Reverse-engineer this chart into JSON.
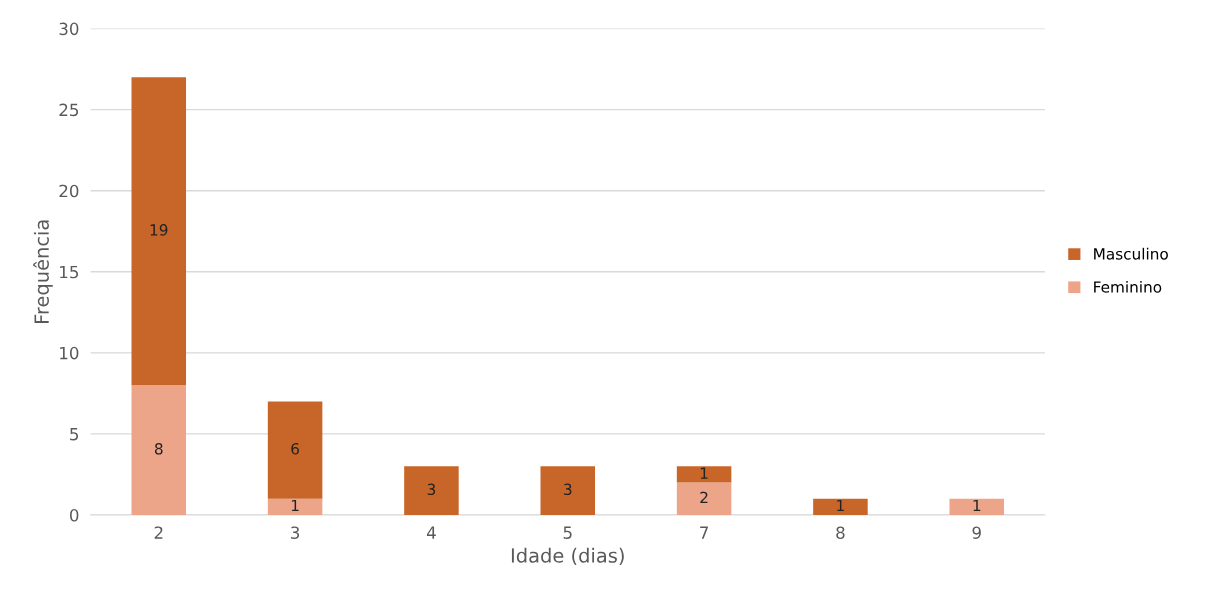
{
  "chart_data": {
    "type": "bar",
    "stacked": true,
    "xlabel": "Idade (dias)",
    "ylabel": "Frequência",
    "categories": [
      "2",
      "3",
      "4",
      "5",
      "7",
      "8",
      "9"
    ],
    "series": [
      {
        "name": "Feminino",
        "color": "#eda58a",
        "values": [
          8,
          1,
          0,
          0,
          2,
          0,
          1
        ],
        "value_labels": [
          "8",
          "1",
          null,
          null,
          "2",
          null,
          "1"
        ]
      },
      {
        "name": "Masculino",
        "color": "#c8662a",
        "values": [
          19,
          6,
          3,
          3,
          1,
          1,
          0
        ],
        "value_labels": [
          "19",
          "6",
          "3",
          "3",
          "1",
          "1",
          null
        ]
      }
    ],
    "ylim": [
      0,
      30
    ],
    "yticks": [
      0,
      5,
      10,
      15,
      20,
      25,
      30
    ],
    "grid": "y",
    "legend": "right"
  }
}
